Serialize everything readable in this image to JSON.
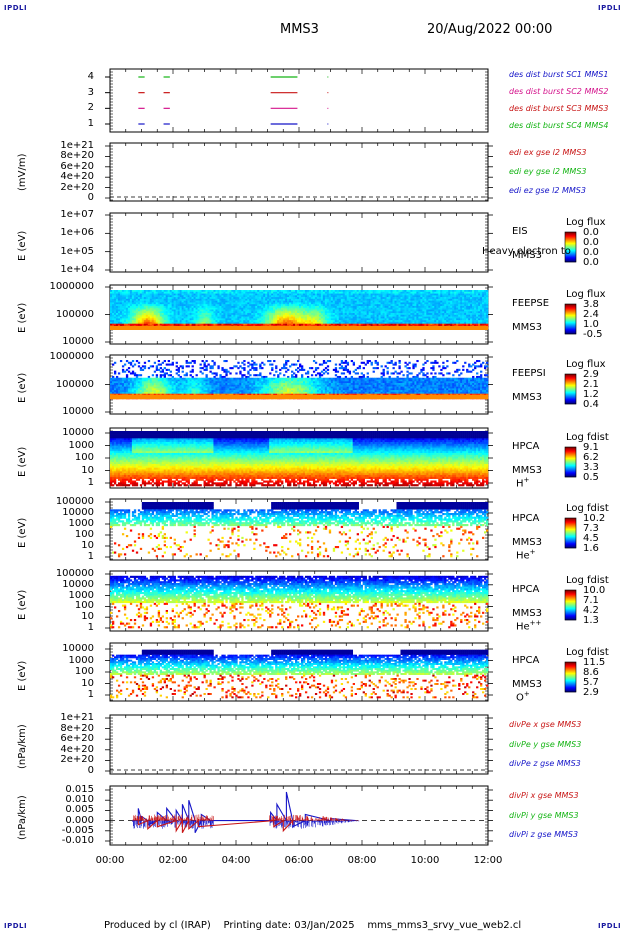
{
  "corner_label": "IPDLI",
  "header": {
    "spacecraft": "MMS3",
    "date": "20/Aug/2022 00:00"
  },
  "footer": {
    "produced_by": "Produced by cl (IRAP)",
    "printing_date": "Printing date: 03/Jan/2025",
    "filename": "mms_mms3_srvy_vue_web2.cl"
  },
  "chart_data": {
    "type": "heatmap",
    "time_axis": {
      "range_hours": [
        0,
        12
      ],
      "tick_labels": [
        "00:00",
        "02:00",
        "04:00",
        "06:00",
        "08:00",
        "10:00",
        "12:00"
      ]
    },
    "panels": [
      {
        "id": "burst",
        "type": "bar",
        "yticks": [
          "4",
          "3",
          "2",
          "1"
        ],
        "legend": [
          {
            "label": "des dist burst SC1 MMS1",
            "color": "#1515c8"
          },
          {
            "label": "des dist burst SC2 MMS2",
            "color": "#d4148c"
          },
          {
            "label": "des dist burst SC3 MMS3",
            "color": "#c81515"
          },
          {
            "label": "des dist burst SC4 MMS4",
            "color": "#14b414"
          }
        ],
        "intervals_hours": [
          [
            0.9,
            1.1
          ],
          [
            1.7,
            1.9
          ],
          [
            5.1,
            5.95
          ]
        ],
        "marker_hour": 6.9
      },
      {
        "id": "edi",
        "type": "line",
        "ylabel": "(mV/m)",
        "yticks": [
          "1e+21",
          "8e+20",
          "6e+20",
          "4e+20",
          "2e+20",
          "0"
        ],
        "legend": [
          {
            "label": "edi ex gse l2 MMS3",
            "color": "#c81515"
          },
          {
            "label": "edi ey gse l2 MMS3",
            "color": "#14b414"
          },
          {
            "label": "edi ez gse l2 MMS3",
            "color": "#1515c8"
          }
        ]
      },
      {
        "id": "eis",
        "type": "heatmap",
        "ylabel": "E (eV)",
        "yticks": [
          "1e+07",
          "1e+06",
          "1e+05",
          "1e+04"
        ],
        "instrument": [
          "EIS",
          "MMS3"
        ],
        "overlay_text": "Heavy electron to",
        "colorbar_title": "Log flux",
        "colorbar_values": [
          "0.0",
          "0.0",
          "0.0",
          "0.0"
        ]
      },
      {
        "id": "feepse",
        "type": "heatmap",
        "ylabel": "E (eV)",
        "yticks": [
          "1000000",
          "100000",
          "10000"
        ],
        "instrument": [
          "FEEPSE",
          "MMS3"
        ],
        "colorbar_title": "Log flux",
        "colorbar_values": [
          "3.8",
          "2.4",
          "1.0",
          "-0.5"
        ]
      },
      {
        "id": "feepsi",
        "type": "heatmap",
        "ylabel": "E (eV)",
        "yticks": [
          "1000000",
          "100000",
          "10000"
        ],
        "instrument": [
          "FEEPSI",
          "MMS3"
        ],
        "colorbar_title": "Log flux",
        "colorbar_values": [
          "2.9",
          "2.1",
          "1.2",
          "0.4"
        ]
      },
      {
        "id": "hpca_h",
        "type": "heatmap",
        "ylabel": "E (eV)",
        "yticks": [
          "10000",
          "1000",
          "100",
          "10",
          "1"
        ],
        "instrument": [
          "HPCA",
          "MMS3"
        ],
        "species": "H",
        "species_charge": "+",
        "colorbar_title": "Log fdist",
        "colorbar_values": [
          "9.1",
          "6.2",
          "3.3",
          "0.5"
        ]
      },
      {
        "id": "hpca_he",
        "type": "heatmap",
        "ylabel": "E (eV)",
        "yticks": [
          "100000",
          "10000",
          "1000",
          "100",
          "10",
          "1"
        ],
        "instrument": [
          "HPCA",
          "MMS3"
        ],
        "species": "He",
        "species_charge": "+",
        "colorbar_title": "Log fdist",
        "colorbar_values": [
          "10.2",
          "7.3",
          "4.5",
          "1.6"
        ]
      },
      {
        "id": "hpca_he2",
        "type": "heatmap",
        "ylabel": "E (eV)",
        "yticks": [
          "100000",
          "10000",
          "1000",
          "100",
          "10",
          "1"
        ],
        "instrument": [
          "HPCA",
          "MMS3"
        ],
        "species": "He",
        "species_charge": "++",
        "colorbar_title": "Log fdist",
        "colorbar_values": [
          "10.0",
          "7.1",
          "4.2",
          "1.3"
        ]
      },
      {
        "id": "hpca_o",
        "type": "heatmap",
        "ylabel": "E (eV)",
        "yticks": [
          "10000",
          "1000",
          "100",
          "10",
          "1"
        ],
        "instrument": [
          "HPCA",
          "MMS3"
        ],
        "species": "O",
        "species_charge": "+",
        "colorbar_title": "Log fdist",
        "colorbar_values": [
          "11.5",
          "8.6",
          "5.7",
          "2.9"
        ]
      },
      {
        "id": "divpe",
        "type": "line",
        "ylabel": "(nPa/km)",
        "yticks": [
          "1e+21",
          "8e+20",
          "6e+20",
          "4e+20",
          "2e+20",
          "0"
        ],
        "legend": [
          {
            "label": "divPe x gse MMS3",
            "color": "#c81515"
          },
          {
            "label": "divPe y gse MMS3",
            "color": "#14b414"
          },
          {
            "label": "divPe z gse MMS3",
            "color": "#1515c8"
          }
        ]
      },
      {
        "id": "divpi",
        "type": "line",
        "ylabel": "(nPa/km)",
        "yticks": [
          "0.015",
          "0.010",
          "0.005",
          "0.000",
          "-0.005",
          "-0.010"
        ],
        "ylim": [
          -0.01,
          0.015
        ],
        "legend": [
          {
            "label": "divPi x gse MMS3",
            "color": "#c81515"
          },
          {
            "label": "divPi y gse MMS3",
            "color": "#14b414"
          },
          {
            "label": "divPi z gse MMS3",
            "color": "#1515c8"
          }
        ],
        "series": [
          {
            "name": "divPi z gse MMS3",
            "x": [
              0.7,
              0.9,
              1.0,
              1.2,
              1.5,
              1.8,
              2.1,
              2.3,
              2.5,
              2.7,
              2.9,
              3.2,
              5.1,
              5.3,
              5.6,
              5.8,
              6.2,
              7.0,
              7.8
            ],
            "y": [
              0.0,
              0.006,
              0.002,
              -0.002,
              0.004,
              0.006,
              0.005,
              0.008,
              0.01,
              -0.006,
              0.003,
              0.0,
              0.004,
              0.008,
              0.014,
              -0.003,
              0.003,
              0.001,
              0.0
            ]
          },
          {
            "name": "divPi x gse MMS3",
            "x": [
              0.9,
              1.2,
              1.5,
              2.1,
              2.3,
              2.5,
              2.8,
              5.2,
              5.5,
              5.8
            ],
            "y": [
              -0.002,
              -0.004,
              -0.003,
              -0.005,
              -0.006,
              -0.004,
              -0.003,
              -0.003,
              -0.005,
              -0.002
            ]
          }
        ]
      }
    ]
  }
}
